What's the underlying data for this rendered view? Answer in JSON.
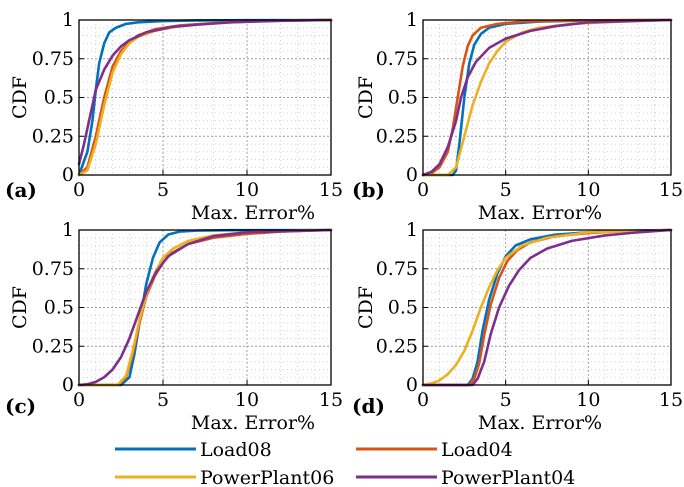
{
  "chart_data": [
    {
      "panel_label": "(a)",
      "type": "line",
      "xlabel": "Max. Error%",
      "ylabel": "CDF",
      "xlim": [
        0,
        15
      ],
      "ylim": [
        0,
        1
      ],
      "xticks": [
        "0",
        "5",
        "10",
        "15"
      ],
      "yticks": [
        "0",
        "0.25",
        "0.5",
        "0.75",
        "1"
      ],
      "grid": true,
      "series": [
        {
          "name": "Load08",
          "color": "#0072BD",
          "x": [
            0,
            0.5,
            0.8,
            1.0,
            1.2,
            1.5,
            1.8,
            2.2,
            2.8,
            3.5,
            5,
            7,
            10,
            15
          ],
          "y": [
            0,
            0.15,
            0.35,
            0.55,
            0.72,
            0.85,
            0.92,
            0.95,
            0.975,
            0.985,
            0.993,
            0.997,
            0.999,
            1
          ]
        },
        {
          "name": "Load04",
          "color": "#D95319",
          "x": [
            0,
            0.5,
            1.0,
            1.5,
            2.0,
            2.5,
            3.0,
            3.5,
            4.5,
            6,
            8,
            10,
            12,
            15
          ],
          "y": [
            0,
            0.05,
            0.25,
            0.5,
            0.7,
            0.8,
            0.86,
            0.9,
            0.94,
            0.965,
            0.98,
            0.99,
            0.996,
            1
          ]
        },
        {
          "name": "PowerPlant06",
          "color": "#EDB120",
          "x": [
            0,
            0.5,
            1.0,
            1.5,
            2.0,
            2.5,
            3.0,
            3.5,
            4.5,
            6,
            8,
            10,
            12,
            15
          ],
          "y": [
            0,
            0.03,
            0.2,
            0.45,
            0.66,
            0.78,
            0.85,
            0.89,
            0.93,
            0.96,
            0.98,
            0.99,
            0.996,
            1
          ]
        },
        {
          "name": "PowerPlant04",
          "color": "#7E2F8E",
          "x": [
            0,
            0.3,
            0.7,
            1.0,
            1.5,
            2.0,
            2.5,
            3.0,
            4.0,
            5.5,
            7,
            9,
            12,
            15
          ],
          "y": [
            0.07,
            0.2,
            0.4,
            0.55,
            0.68,
            0.77,
            0.83,
            0.87,
            0.92,
            0.955,
            0.97,
            0.985,
            0.995,
            1
          ]
        }
      ]
    },
    {
      "panel_label": "(b)",
      "type": "line",
      "xlabel": "Max. Error%",
      "ylabel": "CDF",
      "xlim": [
        0,
        15
      ],
      "ylim": [
        0,
        1
      ],
      "xticks": [
        "0",
        "5",
        "10",
        "15"
      ],
      "yticks": [
        "0",
        "0.25",
        "0.5",
        "0.75",
        "1"
      ],
      "grid": true,
      "series": [
        {
          "name": "Load08",
          "color": "#0072BD",
          "x": [
            0,
            1.8,
            2.0,
            2.2,
            2.5,
            2.8,
            3.1,
            3.5,
            4.0,
            5,
            7,
            10,
            15
          ],
          "y": [
            0,
            0,
            0.03,
            0.2,
            0.5,
            0.72,
            0.84,
            0.91,
            0.95,
            0.975,
            0.99,
            0.997,
            1
          ]
        },
        {
          "name": "Load04",
          "color": "#D95319",
          "x": [
            0,
            0.5,
            1.0,
            1.5,
            1.8,
            2.1,
            2.4,
            2.7,
            3.0,
            3.5,
            4.5,
            6,
            9,
            12,
            15
          ],
          "y": [
            0,
            0.01,
            0.05,
            0.15,
            0.3,
            0.5,
            0.7,
            0.83,
            0.9,
            0.95,
            0.975,
            0.99,
            0.997,
            0.999,
            1
          ]
        },
        {
          "name": "PowerPlant06",
          "color": "#EDB120",
          "x": [
            0,
            1.5,
            2.0,
            2.5,
            3.0,
            3.5,
            4.0,
            4.5,
            5.0,
            6,
            7,
            9,
            12,
            15
          ],
          "y": [
            0,
            0,
            0.05,
            0.25,
            0.45,
            0.6,
            0.72,
            0.8,
            0.86,
            0.92,
            0.95,
            0.975,
            0.99,
            1
          ]
        },
        {
          "name": "PowerPlant04",
          "color": "#7E2F8E",
          "x": [
            0,
            0.5,
            1.0,
            1.5,
            2.0,
            2.3,
            2.7,
            3.2,
            4.0,
            5.0,
            6.5,
            8,
            10,
            15
          ],
          "y": [
            0,
            0.02,
            0.07,
            0.18,
            0.35,
            0.5,
            0.63,
            0.73,
            0.82,
            0.88,
            0.93,
            0.96,
            0.985,
            1
          ]
        }
      ]
    },
    {
      "panel_label": "(c)",
      "type": "line",
      "xlabel": "Max. Error%",
      "ylabel": "CDF",
      "xlim": [
        0,
        15
      ],
      "ylim": [
        0,
        1
      ],
      "xticks": [
        "0",
        "5",
        "10",
        "15"
      ],
      "yticks": [
        "0",
        "0.25",
        "0.5",
        "0.75",
        "1"
      ],
      "grid": true,
      "series": [
        {
          "name": "Load08",
          "color": "#0072BD",
          "x": [
            0,
            2.5,
            3.0,
            3.3,
            3.6,
            4.0,
            4.4,
            4.8,
            5.3,
            6,
            7,
            9,
            15
          ],
          "y": [
            0,
            0,
            0.05,
            0.2,
            0.4,
            0.65,
            0.82,
            0.92,
            0.97,
            0.99,
            0.996,
            0.999,
            1
          ]
        },
        {
          "name": "Load04",
          "color": "#D95319",
          "x": [
            0,
            2.3,
            2.8,
            3.2,
            3.6,
            4.0,
            4.5,
            5.0,
            5.5,
            6.5,
            8,
            10,
            12,
            15
          ],
          "y": [
            0,
            0,
            0.05,
            0.2,
            0.4,
            0.57,
            0.7,
            0.79,
            0.85,
            0.91,
            0.95,
            0.975,
            0.99,
            1
          ]
        },
        {
          "name": "PowerPlant06",
          "color": "#EDB120",
          "x": [
            0,
            2.3,
            2.8,
            3.2,
            3.6,
            4.0,
            4.5,
            5.0,
            5.6,
            6.5,
            8,
            10,
            12,
            15
          ],
          "y": [
            0,
            0,
            0.06,
            0.22,
            0.42,
            0.58,
            0.72,
            0.82,
            0.88,
            0.93,
            0.965,
            0.985,
            0.995,
            1
          ]
        },
        {
          "name": "PowerPlant04",
          "color": "#7E2F8E",
          "x": [
            0,
            0.5,
            1.0,
            1.5,
            2.0,
            2.5,
            3.0,
            3.5,
            4.0,
            4.6,
            5.3,
            6.5,
            8,
            10,
            15
          ],
          "y": [
            0,
            0.005,
            0.02,
            0.05,
            0.1,
            0.18,
            0.3,
            0.45,
            0.6,
            0.73,
            0.83,
            0.91,
            0.96,
            0.985,
            1
          ]
        }
      ]
    },
    {
      "panel_label": "(d)",
      "type": "line",
      "xlabel": "Max. Error%",
      "ylabel": "CDF",
      "xlim": [
        0,
        15
      ],
      "ylim": [
        0,
        1
      ],
      "xticks": [
        "0",
        "5",
        "10",
        "15"
      ],
      "yticks": [
        "0",
        "0.25",
        "0.5",
        "0.75",
        "1"
      ],
      "grid": true,
      "series": [
        {
          "name": "Load08",
          "color": "#0072BD",
          "x": [
            0,
            2.7,
            3.0,
            3.3,
            3.6,
            4.0,
            4.5,
            5.0,
            5.6,
            6.5,
            8,
            10,
            12,
            15
          ],
          "y": [
            0,
            0,
            0.04,
            0.15,
            0.35,
            0.55,
            0.72,
            0.83,
            0.9,
            0.94,
            0.97,
            0.985,
            0.995,
            1
          ]
        },
        {
          "name": "Load04",
          "color": "#D95319",
          "x": [
            0,
            2.8,
            3.1,
            3.4,
            3.7,
            4.1,
            4.6,
            5.1,
            5.7,
            6.5,
            8,
            10,
            12,
            15
          ],
          "y": [
            0,
            0,
            0.04,
            0.14,
            0.32,
            0.52,
            0.69,
            0.8,
            0.87,
            0.92,
            0.96,
            0.98,
            0.992,
            1
          ]
        },
        {
          "name": "PowerPlant06",
          "color": "#EDB120",
          "x": [
            0,
            0.5,
            1.0,
            1.5,
            2.0,
            2.5,
            3.0,
            3.5,
            4.0,
            4.5,
            5.0,
            6.0,
            7.5,
            10,
            15
          ],
          "y": [
            0,
            0.01,
            0.03,
            0.07,
            0.13,
            0.22,
            0.35,
            0.5,
            0.63,
            0.74,
            0.82,
            0.9,
            0.95,
            0.985,
            1
          ]
        },
        {
          "name": "PowerPlant04",
          "color": "#7E2F8E",
          "x": [
            0,
            3.0,
            3.3,
            3.7,
            4.1,
            4.6,
            5.2,
            5.8,
            6.5,
            7.5,
            9,
            11,
            13,
            15
          ],
          "y": [
            0,
            0,
            0.04,
            0.15,
            0.33,
            0.5,
            0.64,
            0.74,
            0.82,
            0.88,
            0.93,
            0.965,
            0.985,
            1
          ]
        }
      ]
    }
  ],
  "legend": {
    "entries": [
      {
        "label": "Load08",
        "color": "#0072BD"
      },
      {
        "label": "Load04",
        "color": "#D95319"
      },
      {
        "label": "PowerPlant06",
        "color": "#EDB120"
      },
      {
        "label": "PowerPlant04",
        "color": "#7E2F8E"
      }
    ]
  }
}
